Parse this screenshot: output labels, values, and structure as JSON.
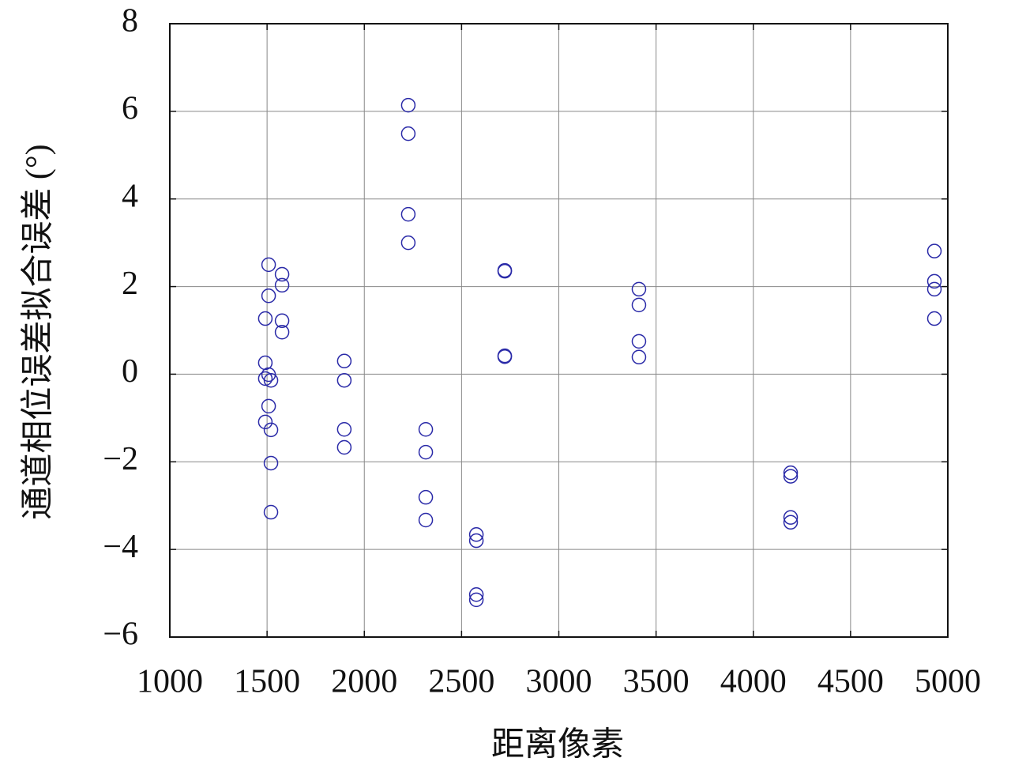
{
  "chart_data": {
    "type": "scatter",
    "x_label": "距离像素",
    "y_label": "通道相位误差拟合误差 (°)",
    "x": [
      1508,
      1508,
      1491,
      1577,
      1577,
      1577,
      1577,
      1491,
      1491,
      1508,
      1520,
      1508,
      1491,
      1520,
      1520,
      1520,
      1897,
      1897,
      1897,
      1897,
      2226,
      2226,
      2226,
      2226,
      2316,
      2316,
      2316,
      2316,
      2576,
      2576,
      2576,
      2576,
      2722,
      2722,
      2722,
      2722,
      3412,
      3412,
      3412,
      3412,
      4192,
      4192,
      4192,
      4192,
      4931,
      4931,
      4931,
      4931
    ],
    "values": [
      2.5,
      1.79,
      1.27,
      2.28,
      2.03,
      1.22,
      0.96,
      0.26,
      -0.1,
      -0.01,
      -0.14,
      -0.73,
      -1.09,
      -1.27,
      -2.03,
      -3.15,
      0.3,
      -0.14,
      -1.26,
      -1.67,
      6.14,
      5.49,
      3.65,
      3.0,
      -1.26,
      -1.78,
      -2.81,
      -3.33,
      -3.66,
      -3.8,
      -5.03,
      -5.15,
      2.37,
      2.35,
      0.42,
      0.4,
      1.94,
      1.58,
      0.75,
      0.39,
      -2.25,
      -2.33,
      -3.27,
      -3.38,
      2.81,
      2.12,
      1.94,
      1.27
    ],
    "color": "#2a2aa8",
    "xlim": [
      1000,
      5000
    ],
    "ylim": [
      -6,
      8
    ],
    "xticks": [
      1000,
      1500,
      2000,
      2500,
      3000,
      3500,
      4000,
      4500,
      5000
    ],
    "yticks": [
      {
        "value": -6,
        "label": "−6"
      },
      {
        "value": -4,
        "label": "−4"
      },
      {
        "value": -2,
        "label": "−2"
      },
      0,
      2,
      4,
      6,
      8
    ],
    "grid": true
  }
}
